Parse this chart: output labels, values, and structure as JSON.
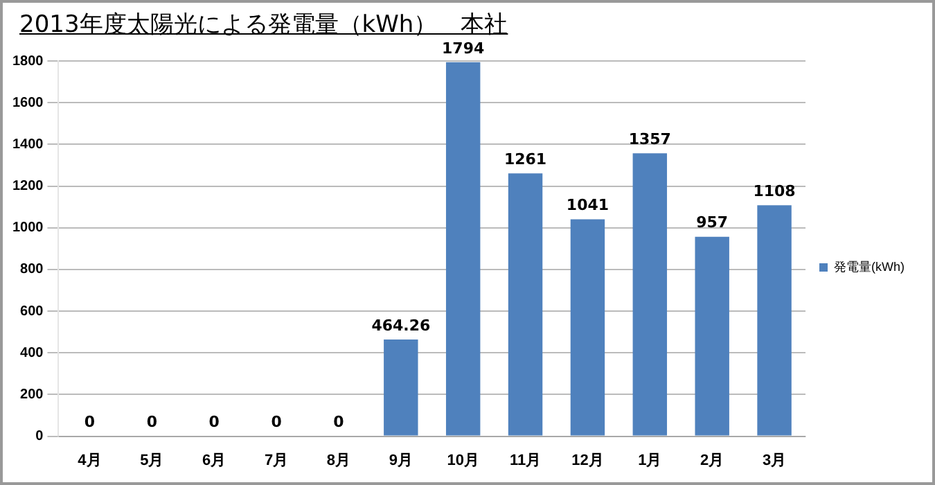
{
  "chart_data": {
    "type": "bar",
    "title": "2013年度太陽光による発電量（kWh）　本社",
    "categories": [
      "4月",
      "5月",
      "6月",
      "7月",
      "8月",
      "9月",
      "10月",
      "11月",
      "12月",
      "1月",
      "2月",
      "3月"
    ],
    "series": [
      {
        "name": "発電量(kWh)",
        "color": "#4f81bd",
        "values": [
          0,
          0,
          0,
          0,
          0,
          464.26,
          1794,
          1261,
          1041,
          1357,
          957,
          1108
        ]
      }
    ],
    "ylim": [
      0,
      1800
    ],
    "yticks": [
      0,
      200,
      400,
      600,
      800,
      1000,
      1200,
      1400,
      1600,
      1800
    ],
    "grid": "y",
    "legend": "right",
    "data_labels": true
  }
}
